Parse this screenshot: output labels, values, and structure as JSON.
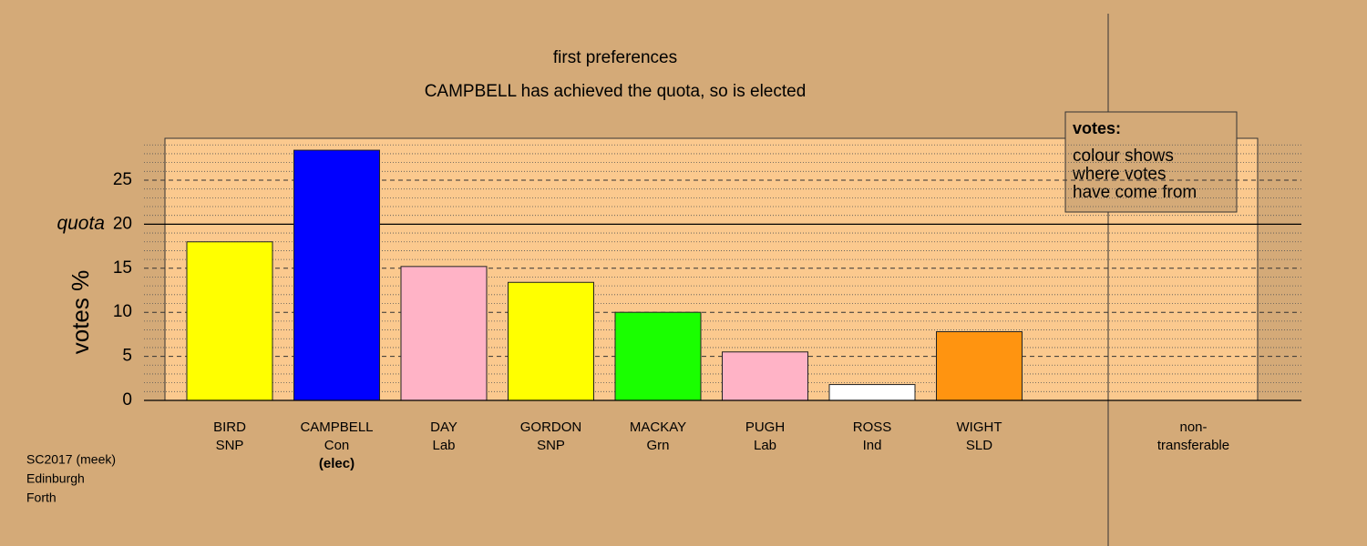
{
  "chart_data": {
    "type": "bar",
    "title": "first preferences",
    "subtitle": "CAMPBELL has achieved the quota, so is elected",
    "ylabel": "votes %",
    "categories": [
      [
        "BIRD",
        "SNP"
      ],
      [
        "CAMPBELL",
        "Con"
      ],
      [
        "DAY",
        "Lab"
      ],
      [
        "GORDON",
        "SNP"
      ],
      [
        "MACKAY",
        "Grn"
      ],
      [
        "PUGH",
        "Lab"
      ],
      [
        "ROSS",
        "Ind"
      ],
      [
        "WIGHT",
        "SLD"
      ],
      [
        "non-",
        "transferable"
      ]
    ],
    "values": [
      18.0,
      28.4,
      15.2,
      13.4,
      10.0,
      5.5,
      1.8,
      7.8,
      0
    ],
    "colors": [
      "#ffff00",
      "#0000ff",
      "#ffb3c6",
      "#ffff00",
      "#1aff00",
      "#ffb3c6",
      "#ffffff",
      "#ff9410",
      "#ffffff"
    ],
    "elected_index": 1,
    "elected_note": "(elec)",
    "quota": 20,
    "quota_label": "quota",
    "ylim": [
      0,
      29.75
    ],
    "yticks": [
      0,
      5,
      10,
      15,
      20,
      25
    ],
    "minor_yticks": [
      1,
      2,
      3,
      4,
      6,
      7,
      8,
      9,
      11,
      12,
      13,
      14,
      16,
      17,
      18,
      19,
      21,
      22,
      23,
      24,
      26,
      27,
      28,
      29
    ],
    "grid": true,
    "legend": {
      "title": "votes:",
      "lines": [
        "colour shows",
        "where votes",
        "have come from"
      ]
    },
    "footer": [
      "SC2017 (meek)",
      "Edinburgh",
      "Forth"
    ]
  }
}
